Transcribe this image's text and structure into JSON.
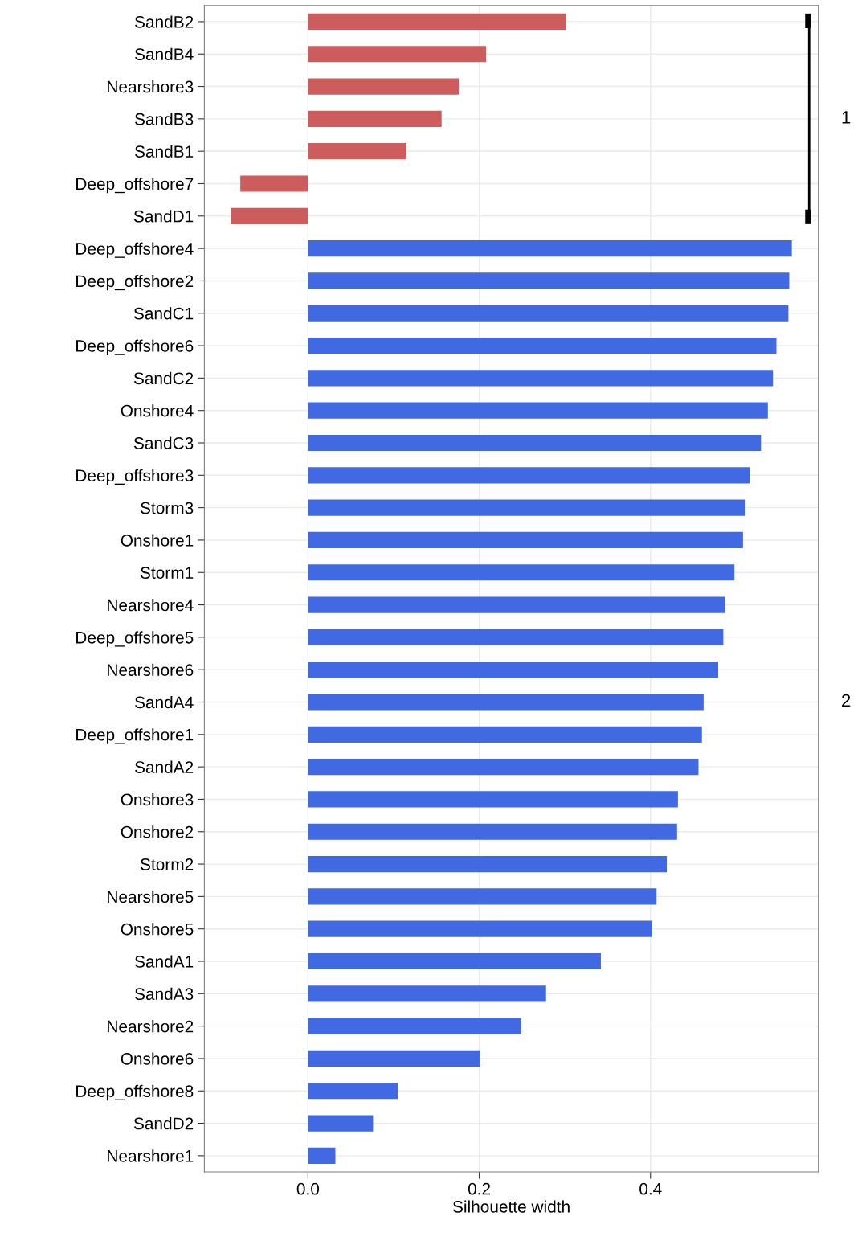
{
  "chart_data": {
    "type": "bar",
    "orientation": "horizontal",
    "xlabel": "Silhouette width",
    "categories": [
      "SandB2",
      "SandB4",
      "Nearshore3",
      "SandB3",
      "SandB1",
      "Deep_offshore7",
      "SandD1",
      "Deep_offshore4",
      "Deep_offshore2",
      "SandC1",
      "Deep_offshore6",
      "SandC2",
      "Onshore4",
      "SandC3",
      "Deep_offshore3",
      "Storm3",
      "Onshore1",
      "Storm1",
      "Nearshore4",
      "Deep_offshore5",
      "Nearshore6",
      "SandA4",
      "Deep_offshore1",
      "SandA2",
      "Onshore3",
      "Onshore2",
      "Storm2",
      "Nearshore5",
      "Onshore5",
      "SandA1",
      "SandA3",
      "Nearshore2",
      "Onshore6",
      "Deep_offshore8",
      "SandD2",
      "Nearshore1"
    ],
    "series": [
      {
        "color": "#cd5c5c",
        "values": [
          0.301,
          0.208,
          0.176,
          0.156,
          0.115,
          -0.079,
          -0.09,
          null,
          null,
          null,
          null,
          null,
          null,
          null,
          null,
          null,
          null,
          null,
          null,
          null,
          null,
          null,
          null,
          null,
          null,
          null,
          null,
          null,
          null,
          null,
          null,
          null,
          null,
          null,
          null,
          null
        ]
      },
      {
        "color": "#4169e1",
        "values": [
          null,
          null,
          null,
          null,
          null,
          null,
          null,
          0.565,
          0.562,
          0.561,
          0.547,
          0.543,
          0.537,
          0.529,
          0.516,
          0.511,
          0.508,
          0.498,
          0.487,
          0.485,
          0.479,
          0.462,
          0.46,
          0.456,
          0.432,
          0.431,
          0.419,
          0.407,
          0.402,
          0.342,
          0.278,
          0.249,
          0.201,
          0.105,
          0.076,
          0.032
        ]
      }
    ],
    "annotations": [
      "1",
      "2"
    ],
    "xlim": [
      -0.121,
      0.596
    ],
    "xticks": [
      {
        "value": 0,
        "label": "0.0"
      },
      0.2,
      0.4
    ],
    "grid": true
  }
}
